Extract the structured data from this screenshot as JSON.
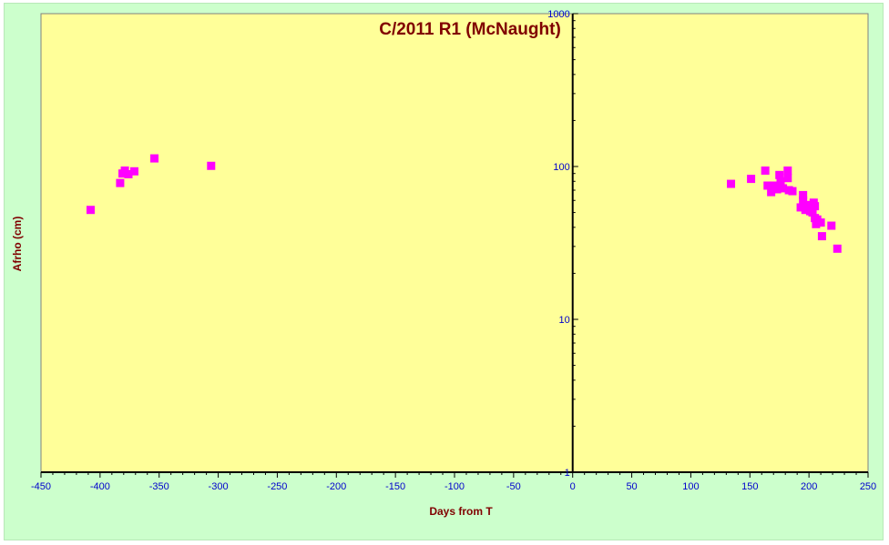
{
  "chart_data": {
    "type": "scatter",
    "title": "C/2011 R1 (McNaught)",
    "xlabel": "Days from  T",
    "ylabel": "Afrho (cm)",
    "xlim": [
      -450,
      250
    ],
    "ylim": [
      1,
      1000
    ],
    "yscale": "log",
    "grid": false,
    "plot_background": "#ffff99",
    "chart_background": "#ccffcc",
    "title_color": "#800000",
    "tick_color": "#0000cc",
    "marker_color": "#ff00ff",
    "x_ticks": [
      "-450",
      "-400",
      "-350",
      "-300",
      "-250",
      "-200",
      "-150",
      "-100",
      "-50",
      "0",
      "50",
      "100",
      "150",
      "200",
      "250"
    ],
    "y_ticks": [
      "1",
      "10",
      "100",
      "1000"
    ],
    "series": [
      {
        "points": [
          [
            -408,
            52
          ],
          [
            -383,
            78
          ],
          [
            -381,
            90
          ],
          [
            -379,
            94
          ],
          [
            -376,
            89
          ],
          [
            -371,
            93
          ],
          [
            -354,
            113
          ],
          [
            -306,
            101
          ],
          [
            134,
            77
          ],
          [
            151,
            83
          ],
          [
            163,
            94
          ],
          [
            165,
            75
          ],
          [
            168,
            68
          ],
          [
            170,
            75
          ],
          [
            173,
            71
          ],
          [
            175,
            88
          ],
          [
            176,
            80
          ],
          [
            178,
            72
          ],
          [
            182,
            94
          ],
          [
            182,
            84
          ],
          [
            183,
            70
          ],
          [
            186,
            69
          ],
          [
            193,
            54
          ],
          [
            195,
            65
          ],
          [
            195,
            60
          ],
          [
            197,
            52
          ],
          [
            198,
            56
          ],
          [
            200,
            55
          ],
          [
            201,
            51
          ],
          [
            203,
            50
          ],
          [
            204,
            58
          ],
          [
            205,
            55
          ],
          [
            205,
            46
          ],
          [
            206,
            42
          ],
          [
            207,
            45
          ],
          [
            210,
            43
          ],
          [
            211,
            35
          ],
          [
            219,
            41
          ],
          [
            224,
            29
          ]
        ]
      }
    ]
  }
}
